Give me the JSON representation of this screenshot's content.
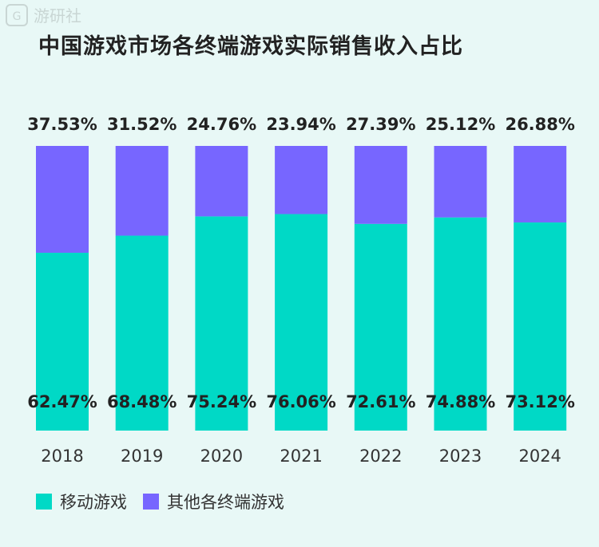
{
  "title": "中国游戏市场各终端游戏实际销售收入占比",
  "watermark": "游研社",
  "colors": {
    "mobile": "#00d9c6",
    "other": "#7766ff",
    "background": "#e8f8f6",
    "text": "#333333"
  },
  "chart_data": {
    "type": "bar",
    "stacked": true,
    "categories": [
      "2018",
      "2019",
      "2020",
      "2021",
      "2022",
      "2023",
      "2024"
    ],
    "series": [
      {
        "name": "移动游戏",
        "values": [
          62.47,
          68.48,
          75.24,
          76.06,
          72.61,
          74.88,
          73.12
        ],
        "labels": [
          "62.47%",
          "68.48%",
          "75.24%",
          "76.06%",
          "72.61%",
          "74.88%",
          "73.12%"
        ]
      },
      {
        "name": "其他各终端游戏",
        "values": [
          37.53,
          31.52,
          24.76,
          23.94,
          27.39,
          25.12,
          26.88
        ],
        "labels": [
          "37.53%",
          "31.52%",
          "24.76%",
          "23.94%",
          "27.39%",
          "25.12%",
          "26.88%"
        ]
      }
    ],
    "ylim": [
      0,
      100
    ],
    "grid": false,
    "legend_position": "bottom-left"
  }
}
